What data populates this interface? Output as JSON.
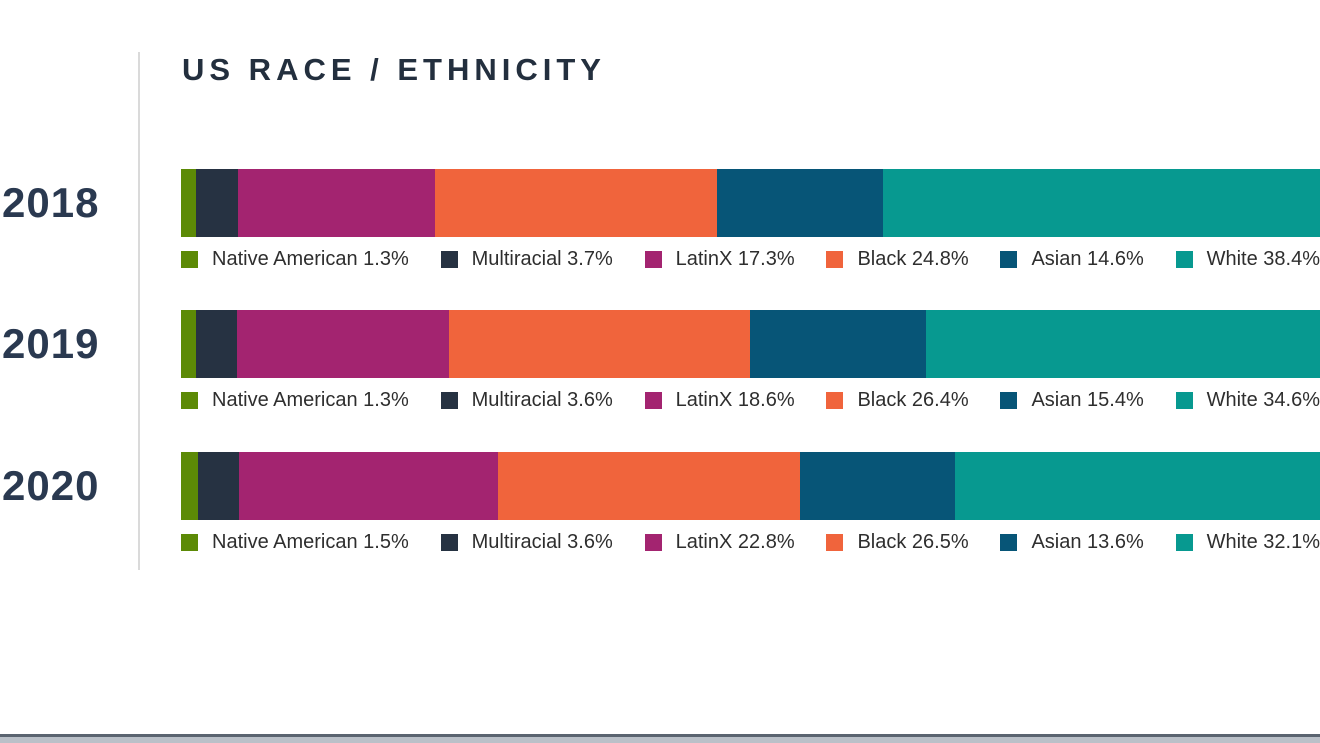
{
  "title": "US RACE / ETHNICITY",
  "colors": {
    "ink_title": "#232F3E",
    "ink_year": "#2A3950",
    "legend_text": "#2E2E2E",
    "vertical_rule": "#DADADA",
    "footer_line": "#5B6470",
    "footer_strip": "#BAC0C8",
    "background": "#FFFFFF",
    "native_american": "#5C8A06",
    "multiracial": "#263242",
    "latinx": "#A32470",
    "black": "#F0643C",
    "asian": "#075577",
    "white": "#079994"
  },
  "chart_data": {
    "type": "bar",
    "variant": "horizontal-stacked-100-percent",
    "title": "US RACE / ETHNICITY",
    "unit": "%",
    "legend_position": "below-each-bar",
    "categories": [
      "2018",
      "2019",
      "2020"
    ],
    "series": [
      {
        "name": "Native American",
        "color": "#5C8A06",
        "values": [
          1.3,
          1.3,
          1.5
        ]
      },
      {
        "name": "Multiracial",
        "color": "#263242",
        "values": [
          3.7,
          3.6,
          3.6
        ]
      },
      {
        "name": "LatinX",
        "color": "#A32470",
        "values": [
          17.3,
          18.6,
          22.8
        ]
      },
      {
        "name": "Black",
        "color": "#F0643C",
        "values": [
          24.8,
          26.4,
          26.5
        ]
      },
      {
        "name": "Asian",
        "color": "#075577",
        "values": [
          14.6,
          15.4,
          13.6
        ]
      },
      {
        "name": "White",
        "color": "#079994",
        "values": [
          38.4,
          34.6,
          32.1
        ]
      }
    ],
    "rows": [
      {
        "year": "2018",
        "segments": [
          {
            "label": "Native American",
            "value": 1.3,
            "color": "#5C8A06",
            "display": "Native American 1.3%"
          },
          {
            "label": "Multiracial",
            "value": 3.7,
            "color": "#263242",
            "display": "Multiracial 3.7%"
          },
          {
            "label": "LatinX",
            "value": 17.3,
            "color": "#A32470",
            "display": "LatinX 17.3%"
          },
          {
            "label": "Black",
            "value": 24.8,
            "color": "#F0643C",
            "display": "Black 24.8%"
          },
          {
            "label": "Asian",
            "value": 14.6,
            "color": "#075577",
            "display": "Asian 14.6%"
          },
          {
            "label": "White",
            "value": 38.4,
            "color": "#079990",
            "display": "White 38.4%"
          }
        ]
      },
      {
        "year": "2019",
        "segments": [
          {
            "label": "Native American",
            "value": 1.3,
            "color": "#5C8A06",
            "display": "Native American 1.3%"
          },
          {
            "label": "Multiracial",
            "value": 3.6,
            "color": "#263242",
            "display": "Multiracial 3.6%"
          },
          {
            "label": "LatinX",
            "value": 18.6,
            "color": "#A32470",
            "display": "LatinX 18.6%"
          },
          {
            "label": "Black",
            "value": 26.4,
            "color": "#F0643C",
            "display": "Black 26.4%"
          },
          {
            "label": "Asian",
            "value": 15.4,
            "color": "#075577",
            "display": "Asian 15.4%"
          },
          {
            "label": "White",
            "value": 34.6,
            "color": "#079990",
            "display": "White 34.6%"
          }
        ]
      },
      {
        "year": "2020",
        "segments": [
          {
            "label": "Native American",
            "value": 1.5,
            "color": "#5C8A06",
            "display": "Native American 1.5%"
          },
          {
            "label": "Multiracial",
            "value": 3.6,
            "color": "#263242",
            "display": "Multiracial 3.6%"
          },
          {
            "label": "LatinX",
            "value": 22.8,
            "color": "#A32470",
            "display": "LatinX 22.8%"
          },
          {
            "label": "Black",
            "value": 26.5,
            "color": "#F0643C",
            "display": "Black 26.5%"
          },
          {
            "label": "Asian",
            "value": 13.6,
            "color": "#075577",
            "display": "Asian 13.6%"
          },
          {
            "label": "White",
            "value": 32.1,
            "color": "#079990",
            "display": "White 32.1%"
          }
        ]
      }
    ]
  }
}
